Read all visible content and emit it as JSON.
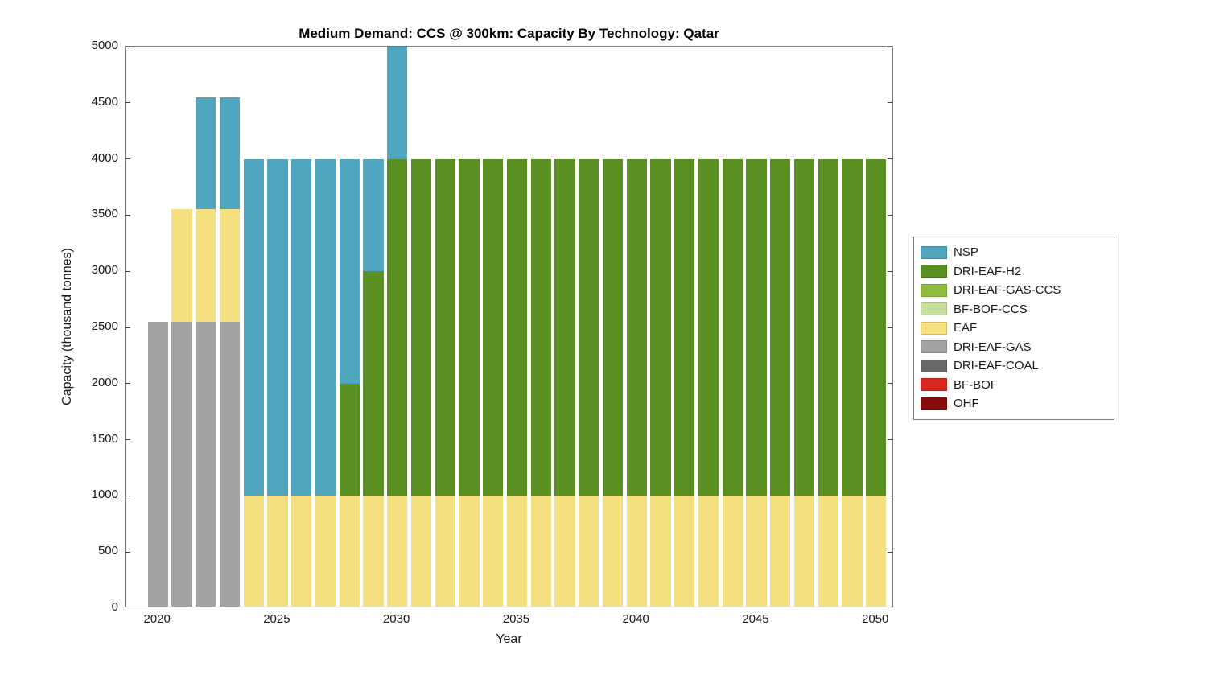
{
  "chart_data": {
    "type": "bar",
    "stacked": true,
    "title": "Medium Demand: CCS @ 300km: Capacity By Technology: Qatar",
    "xlabel": "Year",
    "ylabel": "Capacity (thousand tonnes)",
    "ylim": [
      0,
      5000
    ],
    "ytick_step": 500,
    "xlim": [
      2018.65,
      2050.75
    ],
    "xticks": [
      2020,
      2025,
      2030,
      2035,
      2040,
      2045,
      2050
    ],
    "bar_width": 0.85,
    "grid": false,
    "legend_position": "right",
    "background_color": "#FFFFFF",
    "axis_color": "#4D4D4D",
    "years": [
      2020,
      2021,
      2022,
      2023,
      2024,
      2025,
      2026,
      2027,
      2028,
      2029,
      2030,
      2031,
      2032,
      2033,
      2034,
      2035,
      2036,
      2037,
      2038,
      2039,
      2040,
      2041,
      2042,
      2043,
      2044,
      2045,
      2046,
      2047,
      2048,
      2049,
      2050
    ],
    "stack_order_bottom_to_top": [
      "OHF",
      "BF-BOF",
      "DRI-EAF-COAL",
      "DRI-EAF-GAS",
      "EAF",
      "BF-BOF-CCS",
      "DRI-EAF-GAS-CCS",
      "DRI-EAF-H2",
      "NSP"
    ],
    "series": [
      {
        "name": "NSP",
        "color": "#4FA6BE",
        "values": [
          0,
          0,
          1000,
          1000,
          3000,
          3000,
          3000,
          3000,
          2000,
          1000,
          1000,
          0,
          0,
          0,
          0,
          0,
          0,
          0,
          0,
          0,
          0,
          0,
          0,
          0,
          0,
          0,
          0,
          0,
          0,
          0,
          0
        ]
      },
      {
        "name": "DRI-EAF-H2",
        "color": "#5A8F22",
        "values": [
          0,
          0,
          0,
          0,
          0,
          0,
          0,
          0,
          1000,
          2000,
          3000,
          3000,
          3000,
          3000,
          3000,
          3000,
          3000,
          3000,
          3000,
          3000,
          3000,
          3000,
          3000,
          3000,
          3000,
          3000,
          3000,
          3000,
          3000,
          3000,
          3000
        ]
      },
      {
        "name": "DRI-EAF-GAS-CCS",
        "color": "#8DBB41",
        "values": [
          0,
          0,
          0,
          0,
          0,
          0,
          0,
          0,
          0,
          0,
          0,
          0,
          0,
          0,
          0,
          0,
          0,
          0,
          0,
          0,
          0,
          0,
          0,
          0,
          0,
          0,
          0,
          0,
          0,
          0,
          0
        ]
      },
      {
        "name": "BF-BOF-CCS",
        "color": "#C8E09E",
        "values": [
          0,
          0,
          0,
          0,
          0,
          0,
          0,
          0,
          0,
          0,
          0,
          0,
          0,
          0,
          0,
          0,
          0,
          0,
          0,
          0,
          0,
          0,
          0,
          0,
          0,
          0,
          0,
          0,
          0,
          0,
          0
        ]
      },
      {
        "name": "EAF",
        "color": "#F5DF7E",
        "values": [
          0,
          1000,
          1000,
          1000,
          1000,
          1000,
          1000,
          1000,
          1000,
          1000,
          1000,
          1000,
          1000,
          1000,
          1000,
          1000,
          1000,
          1000,
          1000,
          1000,
          1000,
          1000,
          1000,
          1000,
          1000,
          1000,
          1000,
          1000,
          1000,
          1000,
          1000
        ]
      },
      {
        "name": "DRI-EAF-GAS",
        "color": "#A3A3A3",
        "values": [
          2550,
          2550,
          2550,
          2550,
          0,
          0,
          0,
          0,
          0,
          0,
          0,
          0,
          0,
          0,
          0,
          0,
          0,
          0,
          0,
          0,
          0,
          0,
          0,
          0,
          0,
          0,
          0,
          0,
          0,
          0,
          0
        ]
      },
      {
        "name": "DRI-EAF-COAL",
        "color": "#686868",
        "values": [
          0,
          0,
          0,
          0,
          0,
          0,
          0,
          0,
          0,
          0,
          0,
          0,
          0,
          0,
          0,
          0,
          0,
          0,
          0,
          0,
          0,
          0,
          0,
          0,
          0,
          0,
          0,
          0,
          0,
          0,
          0
        ]
      },
      {
        "name": "BF-BOF",
        "color": "#D7281F",
        "values": [
          0,
          0,
          0,
          0,
          0,
          0,
          0,
          0,
          0,
          0,
          0,
          0,
          0,
          0,
          0,
          0,
          0,
          0,
          0,
          0,
          0,
          0,
          0,
          0,
          0,
          0,
          0,
          0,
          0,
          0,
          0
        ]
      },
      {
        "name": "OHF",
        "color": "#850D0D",
        "values": [
          0,
          0,
          0,
          0,
          0,
          0,
          0,
          0,
          0,
          0,
          0,
          0,
          0,
          0,
          0,
          0,
          0,
          0,
          0,
          0,
          0,
          0,
          0,
          0,
          0,
          0,
          0,
          0,
          0,
          0,
          0
        ]
      }
    ]
  }
}
